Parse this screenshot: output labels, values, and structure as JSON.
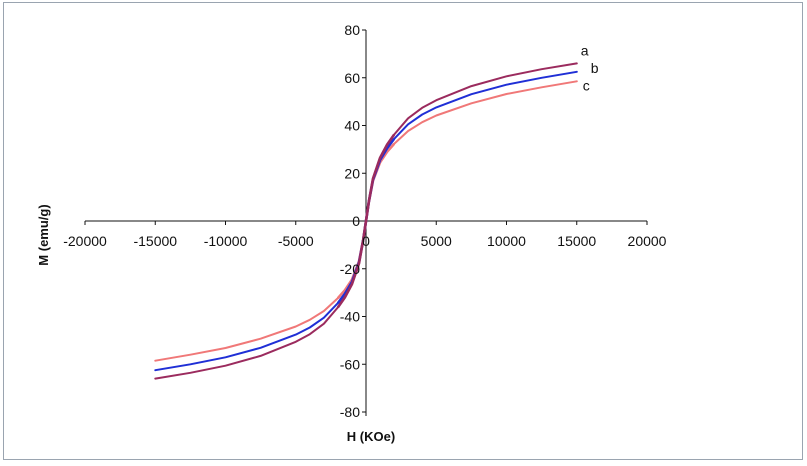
{
  "chart_data": {
    "type": "line",
    "title": "",
    "xlabel": "H (KOe)",
    "ylabel": "M (emu/g)",
    "xlim": [
      -20000,
      20000
    ],
    "ylim": [
      -80,
      80
    ],
    "x_ticks": [
      -20000,
      -15000,
      -10000,
      -5000,
      0,
      5000,
      10000,
      15000,
      20000
    ],
    "y_ticks": [
      -80,
      -60,
      -40,
      -20,
      0,
      20,
      40,
      60,
      80
    ],
    "x_tick_labels": [
      "-20000",
      "-15000",
      "-10000",
      "-5000",
      "0",
      "5000",
      "10000",
      "15000",
      "20000"
    ],
    "y_tick_labels": [
      "-80",
      "-60",
      "-40",
      "-20",
      "0",
      "20",
      "40",
      "60",
      "80"
    ],
    "grid": false,
    "legend": "none",
    "series": [
      {
        "name": "a",
        "color": "#9b2b5e",
        "x": [
          -15000,
          -12500,
          -10000,
          -7500,
          -5000,
          -4000,
          -3000,
          -2000,
          -1500,
          -1000,
          -500,
          -200,
          0,
          200,
          500,
          1000,
          1500,
          2000,
          3000,
          4000,
          5000,
          7500,
          10000,
          12500,
          15000
        ],
        "y": [
          -66,
          -63.6,
          -60.6,
          -56.5,
          -50.6,
          -47.4,
          -43,
          -36.2,
          -32,
          -26.5,
          -17.8,
          -8,
          0,
          8,
          17.8,
          26.5,
          32,
          36.2,
          43,
          47.4,
          50.6,
          56.5,
          60.6,
          63.6,
          66
        ]
      },
      {
        "name": "b",
        "color": "#1f2fd6",
        "x": [
          -15000,
          -12500,
          -10000,
          -7500,
          -5000,
          -4000,
          -3000,
          -2000,
          -1500,
          -1000,
          -500,
          -200,
          0,
          200,
          500,
          1000,
          1500,
          2000,
          3000,
          4000,
          5000,
          7500,
          10000,
          12500,
          15000
        ],
        "y": [
          -62.5,
          -60,
          -57.1,
          -53.1,
          -47.6,
          -44.6,
          -40.5,
          -34.4,
          -30.5,
          -25.6,
          -17.3,
          -8,
          0,
          8,
          17.3,
          25.6,
          30.5,
          34.4,
          40.5,
          44.6,
          47.6,
          53.1,
          57.1,
          60,
          62.5
        ]
      },
      {
        "name": "c",
        "color": "#f07878",
        "x": [
          -15000,
          -12500,
          -10000,
          -7500,
          -5000,
          -4000,
          -3000,
          -2000,
          -1500,
          -1000,
          -500,
          -200,
          0,
          200,
          500,
          1000,
          1500,
          2000,
          3000,
          4000,
          5000,
          7500,
          10000,
          12500,
          15000
        ],
        "y": [
          -58.5,
          -56,
          -53.2,
          -49.3,
          -44.2,
          -41.4,
          -37.7,
          -32.3,
          -29,
          -24.6,
          -16.9,
          -7.8,
          0,
          7.8,
          16.9,
          24.6,
          29,
          32.3,
          37.7,
          41.4,
          44.2,
          49.3,
          53.2,
          56,
          58.5
        ]
      }
    ]
  }
}
